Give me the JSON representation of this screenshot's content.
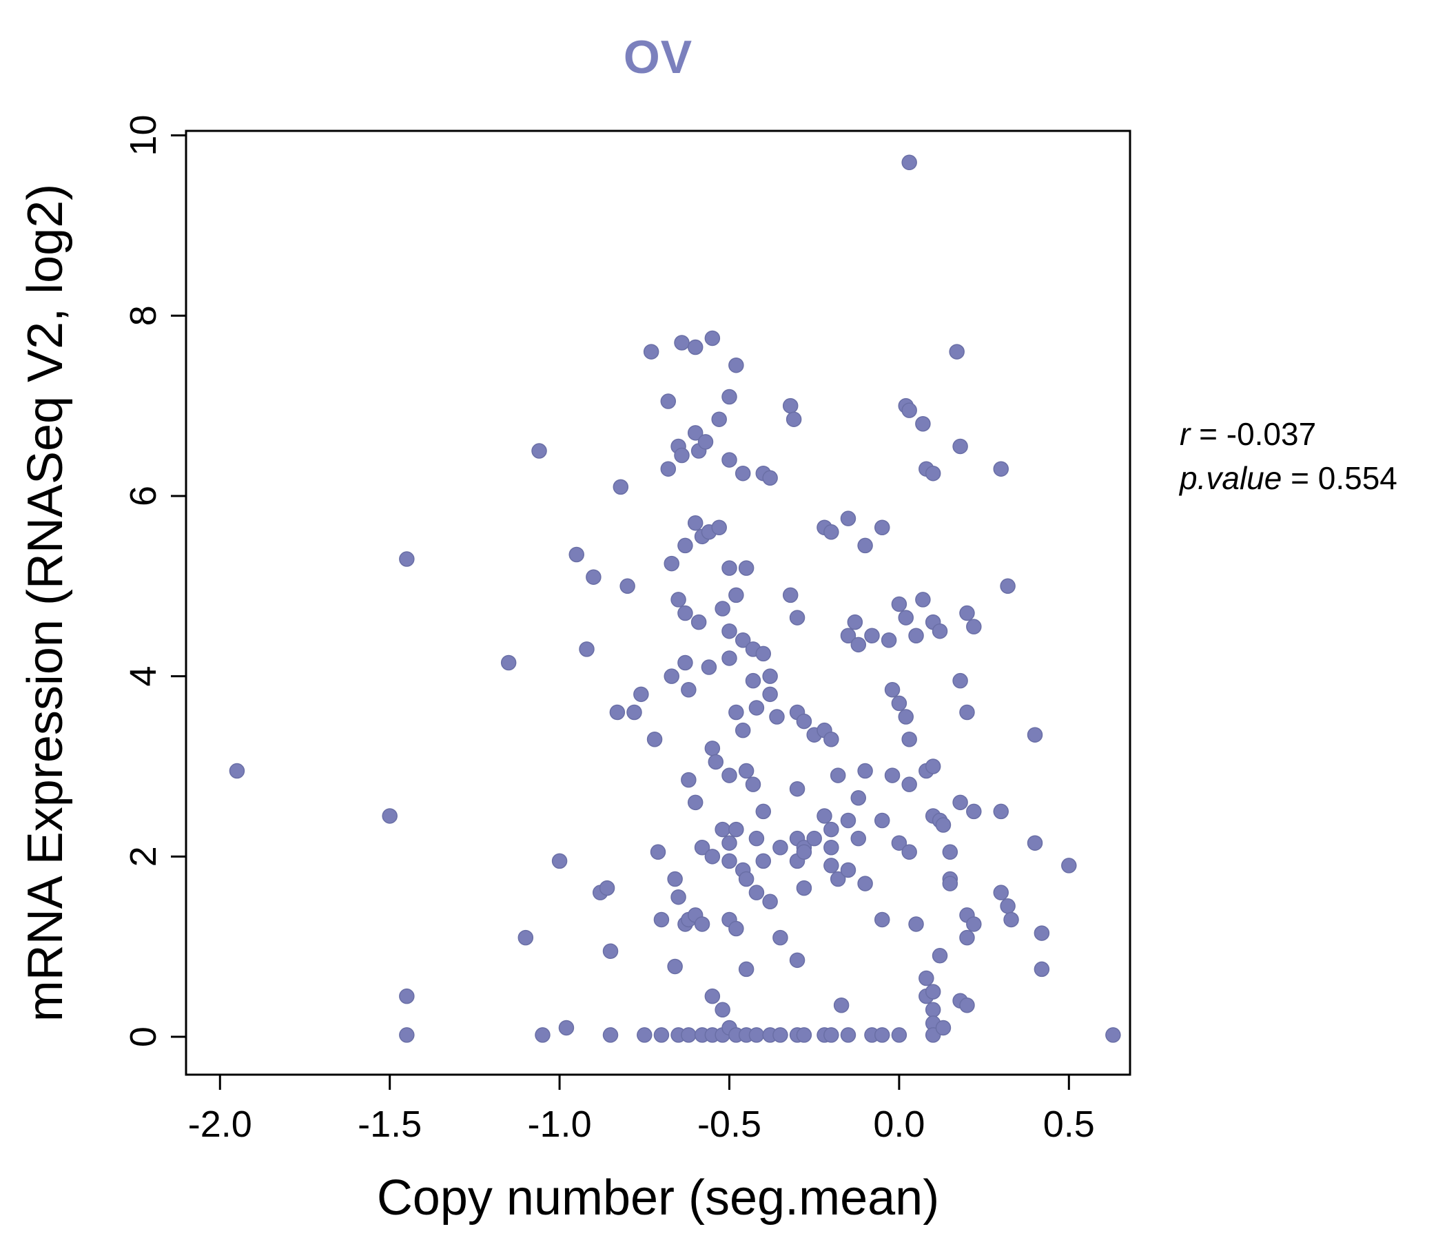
{
  "chart": {
    "title": "OV",
    "title_color": "#7b80bd",
    "xlabel": "Copy number (seg.mean)",
    "ylabel": "mRNA Expression (RNASeq V2, log2)",
    "annotation": {
      "r_var": "r",
      "r_rest": " = -0.037",
      "p_var": "p.value",
      "p_rest": " = 0.554"
    }
  },
  "chart_data": {
    "type": "scatter",
    "title": "OV",
    "xlabel": "Copy number (seg.mean)",
    "ylabel": "mRNA Expression (RNASeq V2, log2)",
    "xlim": [
      -2.1,
      0.68
    ],
    "ylim": [
      -0.42,
      10.05
    ],
    "x_ticks": [
      -2.0,
      -1.5,
      -1.0,
      -0.5,
      0.0,
      0.5
    ],
    "x_tick_labels": [
      "-2.0",
      "-1.5",
      "-1.0",
      "-0.5",
      "0.0",
      "0.5"
    ],
    "y_ticks": [
      0,
      2,
      4,
      6,
      8,
      10
    ],
    "y_tick_labels": [
      "0",
      "2",
      "4",
      "6",
      "8",
      "10"
    ],
    "grid": false,
    "legend": "none",
    "point_color": "#7a7eb8",
    "point_edge_color": "#6a6fa6",
    "title_color": "#7b80bd",
    "correlation": {
      "r": -0.037,
      "p_value": 0.554
    },
    "points": [
      [
        -1.95,
        2.95
      ],
      [
        -1.5,
        2.45
      ],
      [
        -1.45,
        5.3
      ],
      [
        -1.45,
        0.45
      ],
      [
        -1.45,
        0.02
      ],
      [
        -1.15,
        4.15
      ],
      [
        -1.1,
        1.1
      ],
      [
        -1.06,
        6.5
      ],
      [
        -1.05,
        0.02
      ],
      [
        -1.0,
        1.95
      ],
      [
        -0.98,
        0.1
      ],
      [
        -0.95,
        5.35
      ],
      [
        -0.92,
        4.3
      ],
      [
        -0.9,
        5.1
      ],
      [
        -0.88,
        1.6
      ],
      [
        -0.86,
        1.65
      ],
      [
        -0.85,
        0.95
      ],
      [
        -0.85,
        0.02
      ],
      [
        -0.83,
        3.6
      ],
      [
        -0.82,
        6.1
      ],
      [
        -0.8,
        5.0
      ],
      [
        -0.78,
        3.6
      ],
      [
        -0.76,
        3.8
      ],
      [
        -0.75,
        0.02
      ],
      [
        -0.73,
        7.6
      ],
      [
        -0.72,
        3.3
      ],
      [
        -0.71,
        2.05
      ],
      [
        -0.7,
        1.3
      ],
      [
        -0.7,
        0.02
      ],
      [
        -0.68,
        7.05
      ],
      [
        -0.68,
        6.3
      ],
      [
        -0.67,
        5.25
      ],
      [
        -0.67,
        4.0
      ],
      [
        -0.66,
        1.75
      ],
      [
        -0.66,
        0.78
      ],
      [
        -0.65,
        6.55
      ],
      [
        -0.65,
        4.85
      ],
      [
        -0.65,
        1.55
      ],
      [
        -0.65,
        0.02
      ],
      [
        -0.64,
        7.7
      ],
      [
        -0.64,
        6.45
      ],
      [
        -0.63,
        5.45
      ],
      [
        -0.63,
        4.7
      ],
      [
        -0.63,
        4.15
      ],
      [
        -0.63,
        1.25
      ],
      [
        -0.62,
        3.85
      ],
      [
        -0.62,
        2.85
      ],
      [
        -0.62,
        1.3
      ],
      [
        -0.62,
        0.02
      ],
      [
        -0.6,
        7.65
      ],
      [
        -0.6,
        6.7
      ],
      [
        -0.6,
        5.7
      ],
      [
        -0.6,
        2.6
      ],
      [
        -0.6,
        1.35
      ],
      [
        -0.59,
        6.5
      ],
      [
        -0.59,
        4.6
      ],
      [
        -0.58,
        5.55
      ],
      [
        -0.58,
        2.1
      ],
      [
        -0.58,
        1.25
      ],
      [
        -0.58,
        0.02
      ],
      [
        -0.57,
        6.6
      ],
      [
        -0.56,
        5.6
      ],
      [
        -0.56,
        4.1
      ],
      [
        -0.55,
        7.75
      ],
      [
        -0.55,
        3.2
      ],
      [
        -0.55,
        2.0
      ],
      [
        -0.55,
        0.45
      ],
      [
        -0.55,
        0.02
      ],
      [
        -0.54,
        3.05
      ],
      [
        -0.53,
        6.85
      ],
      [
        -0.53,
        5.65
      ],
      [
        -0.52,
        4.75
      ],
      [
        -0.52,
        2.3
      ],
      [
        -0.52,
        0.3
      ],
      [
        -0.52,
        0.02
      ],
      [
        -0.5,
        7.1
      ],
      [
        -0.5,
        6.4
      ],
      [
        -0.5,
        5.2
      ],
      [
        -0.5,
        4.5
      ],
      [
        -0.5,
        4.2
      ],
      [
        -0.5,
        2.9
      ],
      [
        -0.5,
        2.15
      ],
      [
        -0.5,
        1.95
      ],
      [
        -0.5,
        1.3
      ],
      [
        -0.5,
        0.1
      ],
      [
        -0.48,
        7.45
      ],
      [
        -0.48,
        4.9
      ],
      [
        -0.48,
        3.6
      ],
      [
        -0.48,
        2.3
      ],
      [
        -0.48,
        1.2
      ],
      [
        -0.48,
        0.02
      ],
      [
        -0.46,
        6.25
      ],
      [
        -0.46,
        4.4
      ],
      [
        -0.46,
        3.4
      ],
      [
        -0.46,
        1.85
      ],
      [
        -0.45,
        5.2
      ],
      [
        -0.45,
        2.95
      ],
      [
        -0.45,
        1.75
      ],
      [
        -0.45,
        0.75
      ],
      [
        -0.45,
        0.02
      ],
      [
        -0.43,
        4.3
      ],
      [
        -0.43,
        3.95
      ],
      [
        -0.43,
        2.8
      ],
      [
        -0.42,
        3.65
      ],
      [
        -0.42,
        2.2
      ],
      [
        -0.42,
        1.6
      ],
      [
        -0.42,
        0.02
      ],
      [
        -0.4,
        6.25
      ],
      [
        -0.4,
        4.25
      ],
      [
        -0.4,
        2.5
      ],
      [
        -0.4,
        1.95
      ],
      [
        -0.38,
        6.2
      ],
      [
        -0.38,
        4.0
      ],
      [
        -0.38,
        3.8
      ],
      [
        -0.38,
        1.5
      ],
      [
        -0.38,
        0.02
      ],
      [
        -0.36,
        3.55
      ],
      [
        -0.35,
        2.1
      ],
      [
        -0.35,
        1.1
      ],
      [
        -0.35,
        0.02
      ],
      [
        -0.32,
        7.0
      ],
      [
        -0.32,
        4.9
      ],
      [
        -0.31,
        6.85
      ],
      [
        -0.3,
        4.65
      ],
      [
        -0.3,
        3.6
      ],
      [
        -0.3,
        2.75
      ],
      [
        -0.3,
        2.2
      ],
      [
        -0.3,
        1.95
      ],
      [
        -0.3,
        0.85
      ],
      [
        -0.3,
        0.02
      ],
      [
        -0.28,
        3.5
      ],
      [
        -0.28,
        2.1
      ],
      [
        -0.28,
        2.05
      ],
      [
        -0.28,
        1.65
      ],
      [
        -0.28,
        0.02
      ],
      [
        -0.25,
        3.35
      ],
      [
        -0.25,
        2.2
      ],
      [
        -0.22,
        5.65
      ],
      [
        -0.22,
        3.4
      ],
      [
        -0.22,
        2.45
      ],
      [
        -0.22,
        0.02
      ],
      [
        -0.2,
        5.6
      ],
      [
        -0.2,
        3.3
      ],
      [
        -0.2,
        2.3
      ],
      [
        -0.2,
        2.1
      ],
      [
        -0.2,
        1.9
      ],
      [
        -0.2,
        0.02
      ],
      [
        -0.18,
        2.9
      ],
      [
        -0.18,
        1.75
      ],
      [
        -0.17,
        0.35
      ],
      [
        -0.15,
        5.75
      ],
      [
        -0.15,
        4.45
      ],
      [
        -0.15,
        2.4
      ],
      [
        -0.15,
        1.85
      ],
      [
        -0.15,
        0.02
      ],
      [
        -0.13,
        4.6
      ],
      [
        -0.12,
        4.35
      ],
      [
        -0.12,
        2.65
      ],
      [
        -0.12,
        2.2
      ],
      [
        -0.1,
        5.45
      ],
      [
        -0.1,
        2.95
      ],
      [
        -0.1,
        1.7
      ],
      [
        -0.08,
        4.45
      ],
      [
        -0.08,
        0.02
      ],
      [
        -0.05,
        5.65
      ],
      [
        -0.05,
        2.4
      ],
      [
        -0.05,
        1.3
      ],
      [
        -0.05,
        0.02
      ],
      [
        -0.03,
        4.4
      ],
      [
        -0.02,
        3.85
      ],
      [
        -0.02,
        2.9
      ],
      [
        0.0,
        4.8
      ],
      [
        0.0,
        3.7
      ],
      [
        0.0,
        2.15
      ],
      [
        0.0,
        0.02
      ],
      [
        0.02,
        7.0
      ],
      [
        0.02,
        4.65
      ],
      [
        0.02,
        3.55
      ],
      [
        0.03,
        9.7
      ],
      [
        0.03,
        6.95
      ],
      [
        0.03,
        3.3
      ],
      [
        0.03,
        2.8
      ],
      [
        0.03,
        2.05
      ],
      [
        0.05,
        4.45
      ],
      [
        0.05,
        1.25
      ],
      [
        0.07,
        6.8
      ],
      [
        0.07,
        4.85
      ],
      [
        0.08,
        6.3
      ],
      [
        0.08,
        2.95
      ],
      [
        0.08,
        0.65
      ],
      [
        0.08,
        0.45
      ],
      [
        0.1,
        6.25
      ],
      [
        0.1,
        4.6
      ],
      [
        0.1,
        3.0
      ],
      [
        0.1,
        2.45
      ],
      [
        0.1,
        0.5
      ],
      [
        0.1,
        0.3
      ],
      [
        0.1,
        0.15
      ],
      [
        0.1,
        0.02
      ],
      [
        0.12,
        4.5
      ],
      [
        0.12,
        2.4
      ],
      [
        0.12,
        0.9
      ],
      [
        0.13,
        2.35
      ],
      [
        0.13,
        0.1
      ],
      [
        0.15,
        2.05
      ],
      [
        0.15,
        1.75
      ],
      [
        0.15,
        1.7
      ],
      [
        0.17,
        7.6
      ],
      [
        0.18,
        6.55
      ],
      [
        0.18,
        3.95
      ],
      [
        0.18,
        2.6
      ],
      [
        0.18,
        0.4
      ],
      [
        0.2,
        4.7
      ],
      [
        0.2,
        3.6
      ],
      [
        0.2,
        1.35
      ],
      [
        0.2,
        1.1
      ],
      [
        0.2,
        0.35
      ],
      [
        0.22,
        4.55
      ],
      [
        0.22,
        2.5
      ],
      [
        0.22,
        1.25
      ],
      [
        0.3,
        6.3
      ],
      [
        0.3,
        2.5
      ],
      [
        0.3,
        1.6
      ],
      [
        0.32,
        5.0
      ],
      [
        0.32,
        1.45
      ],
      [
        0.33,
        1.3
      ],
      [
        0.4,
        3.35
      ],
      [
        0.4,
        2.15
      ],
      [
        0.42,
        1.15
      ],
      [
        0.42,
        0.75
      ],
      [
        0.5,
        1.9
      ],
      [
        0.63,
        0.02
      ]
    ]
  }
}
